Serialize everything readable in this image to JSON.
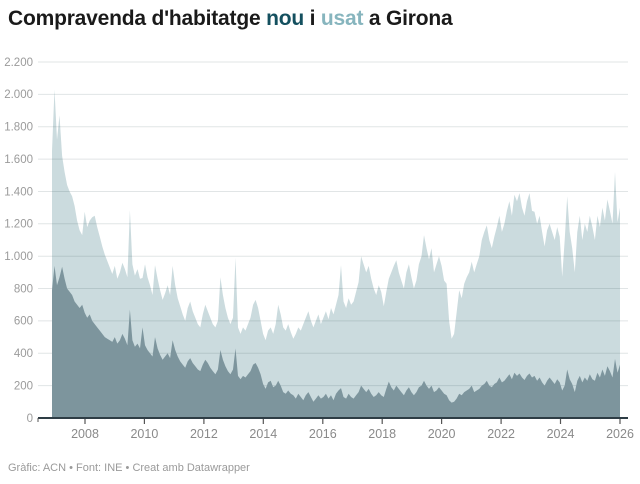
{
  "title": {
    "part1": "Compravenda d'habitatge ",
    "nou": "nou",
    "sep": " i ",
    "usat": "usat",
    "part3": " a Girona"
  },
  "footer": "Gràfic: ACN • Font: INE • Creat amb Datawrapper",
  "colors": {
    "title_nou": "#14505f",
    "title_usat": "#87b5be",
    "area_nou": "#7d959d",
    "area_usat": "#cbdbde",
    "axis_line": "#2e3d45",
    "grid_line": "rgba(40,70,80,0.14)",
    "y_label": "#9b9b9b",
    "x_label": "#8a8a8a"
  },
  "chart_data": {
    "type": "area",
    "stacked": true,
    "title": "Compravenda d'habitatge nou i usat a Girona",
    "start": "2007-01",
    "end": "2025-11",
    "freq": "monthly",
    "ylim": [
      0,
      2200
    ],
    "grid": true,
    "x_ticks": [
      2008,
      2010,
      2012,
      2014,
      2016,
      2018,
      2020,
      2022,
      2024,
      2026
    ],
    "y_ticks": [
      {
        "v": 0,
        "label": "0"
      },
      {
        "v": 200,
        "label": "200"
      },
      {
        "v": 400,
        "label": "400"
      },
      {
        "v": 600,
        "label": "600"
      },
      {
        "v": 800,
        "label": "800"
      },
      {
        "v": 1000,
        "label": "1.000"
      },
      {
        "v": 1200,
        "label": "1.200"
      },
      {
        "v": 1400,
        "label": "1.400"
      },
      {
        "v": 1600,
        "label": "1.600"
      },
      {
        "v": 1800,
        "label": "1.800"
      },
      {
        "v": 2000,
        "label": "2.000"
      },
      {
        "v": 2200,
        "label": "2.200"
      }
    ],
    "series": [
      {
        "name": "nou",
        "color": "#7d959d",
        "values": [
          790,
          940,
          820,
          870,
          935,
          860,
          800,
          780,
          760,
          720,
          700,
          680,
          700,
          650,
          620,
          640,
          600,
          580,
          560,
          540,
          520,
          500,
          490,
          480,
          470,
          500,
          460,
          480,
          520,
          490,
          450,
          670,
          480,
          440,
          460,
          430,
          560,
          450,
          420,
          400,
          380,
          500,
          430,
          390,
          360,
          380,
          400,
          370,
          480,
          420,
          380,
          350,
          330,
          310,
          350,
          370,
          340,
          320,
          300,
          290,
          330,
          360,
          340,
          310,
          290,
          270,
          300,
          420,
          360,
          320,
          290,
          270,
          300,
          430,
          260,
          240,
          260,
          250,
          270,
          290,
          330,
          340,
          310,
          270,
          210,
          180,
          220,
          230,
          190,
          200,
          230,
          200,
          160,
          150,
          170,
          150,
          140,
          120,
          150,
          130,
          110,
          140,
          160,
          130,
          100,
          120,
          140,
          120,
          130,
          150,
          120,
          140,
          110,
          150,
          170,
          185,
          130,
          120,
          150,
          130,
          120,
          140,
          160,
          200,
          180,
          160,
          180,
          150,
          130,
          140,
          160,
          140,
          130,
          180,
          225,
          190,
          170,
          200,
          180,
          160,
          140,
          170,
          190,
          160,
          140,
          160,
          190,
          200,
          230,
          200,
          180,
          200,
          160,
          170,
          190,
          170,
          150,
          140,
          110,
          95,
          100,
          120,
          150,
          140,
          160,
          170,
          180,
          200,
          160,
          170,
          180,
          200,
          210,
          230,
          200,
          190,
          210,
          220,
          250,
          220,
          230,
          250,
          270,
          240,
          280,
          260,
          275,
          250,
          235,
          260,
          275,
          250,
          260,
          230,
          250,
          220,
          200,
          230,
          250,
          230,
          210,
          240,
          220,
          170,
          200,
          300,
          240,
          210,
          160,
          230,
          260,
          220,
          250,
          230,
          270,
          240,
          230,
          280,
          250,
          300,
          260,
          320,
          290,
          250,
          365,
          280,
          330
        ]
      },
      {
        "name": "usat",
        "color": "#cbdbde",
        "values": [
          860,
          1090,
          900,
          1000,
          685,
          660,
          640,
          620,
          610,
          590,
          520,
          480,
          430,
          625,
          560,
          580,
          640,
          670,
          620,
          580,
          540,
          510,
          480,
          450,
          420,
          440,
          400,
          420,
          440,
          430,
          420,
          615,
          470,
          440,
          460,
          430,
          305,
          500,
          450,
          420,
          380,
          445,
          430,
          400,
          370,
          390,
          420,
          390,
          460,
          400,
          360,
          340,
          310,
          290,
          330,
          350,
          320,
          300,
          280,
          270,
          310,
          340,
          320,
          310,
          290,
          290,
          300,
          450,
          400,
          360,
          330,
          310,
          320,
          560,
          300,
          280,
          300,
          290,
          310,
          330,
          370,
          390,
          370,
          330,
          310,
          300,
          320,
          330,
          330,
          380,
          470,
          440,
          400,
          390,
          410,
          380,
          350,
          400,
          410,
          410,
          470,
          480,
          500,
          470,
          460,
          480,
          500,
          460,
          490,
          510,
          490,
          540,
          530,
          550,
          590,
          760,
          590,
          560,
          590,
          570,
          600,
          640,
          680,
          800,
          770,
          740,
          760,
          710,
          670,
          620,
          660,
          640,
          560,
          600,
          635,
          710,
          770,
          775,
          720,
          690,
          660,
          730,
          760,
          710,
          660,
          690,
          760,
          800,
          900,
          850,
          800,
          850,
          740,
          780,
          810,
          770,
          700,
          690,
          490,
          395,
          420,
          530,
          640,
          600,
          670,
          700,
          720,
          765,
          740,
          780,
          820,
          900,
          940,
          960,
          900,
          860,
          910,
          960,
          1000,
          930,
          970,
          1030,
          1070,
          1010,
          1100,
          1080,
          1115,
          1050,
          1015,
          1080,
          1115,
          1030,
          1015,
          970,
          1000,
          930,
          860,
          930,
          950,
          920,
          890,
          940,
          900,
          703,
          900,
          1070,
          910,
          840,
          740,
          920,
          990,
          880,
          950,
          920,
          980,
          940,
          870,
          970,
          930,
          1000,
          960,
          1030,
          990,
          950,
          1155,
          930,
          970
        ]
      }
    ]
  }
}
